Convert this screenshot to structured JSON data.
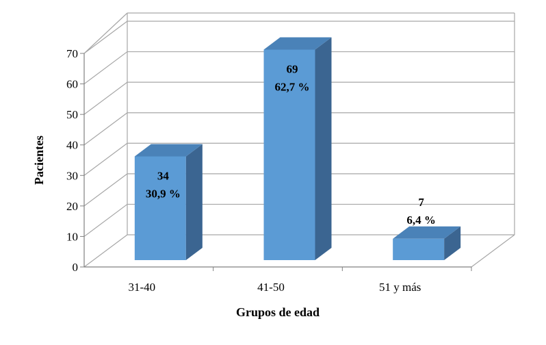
{
  "chart_data": {
    "type": "bar",
    "style": "3d-column",
    "categories": [
      "31-40",
      "41-50",
      "51 y más"
    ],
    "values": [
      34,
      69,
      7
    ],
    "percent_labels": [
      "30,9 %",
      "62,7 %",
      "6,4 %"
    ],
    "xlabel": "Grupos de edad",
    "ylabel": "Pacientes",
    "ylim": [
      0,
      70
    ],
    "yticks": [
      0,
      10,
      20,
      30,
      40,
      50,
      60,
      70
    ],
    "grid": true,
    "legend": "none",
    "colors": {
      "bar_front": "#5B9BD5",
      "bar_top": "#4A82B8",
      "bar_side": "#3B6591",
      "grid": "#A6A6A6",
      "axis": "#808080"
    }
  }
}
